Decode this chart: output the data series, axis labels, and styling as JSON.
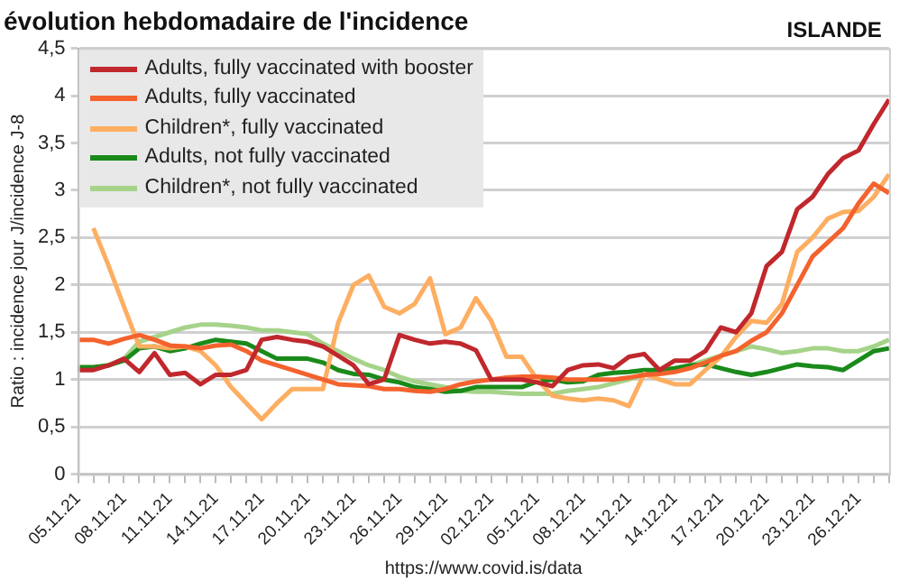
{
  "chart_data": {
    "type": "line",
    "title": "évolution hebdomadaire de l'incidence",
    "ylabel": "Ratio : incidence jour J/incidence J-8",
    "annotations": [
      "ISLANDE",
      "https://www.covid.is/data"
    ],
    "categories": [
      "05.11.21",
      null,
      null,
      "08.11.21",
      null,
      null,
      "11.11.21",
      null,
      null,
      "14.11.21",
      null,
      null,
      "17.11.21",
      null,
      null,
      "20.11.21",
      null,
      null,
      "23.11.21",
      null,
      null,
      "26.11.21",
      null,
      null,
      "29.11.21",
      null,
      null,
      "02.12.21",
      null,
      null,
      "05.12.21",
      null,
      null,
      "08.12.21",
      null,
      null,
      "11.12.21",
      null,
      null,
      "14.12.21",
      null,
      null,
      "17.12.21",
      null,
      null,
      "20.12.21",
      null,
      null,
      "23.12.21",
      null,
      null,
      "26.12.21",
      null,
      null
    ],
    "series": [
      {
        "name": "Adults, fully vaccinated with booster",
        "color": "#c0282d",
        "values": [
          1.1,
          1.1,
          1.15,
          1.22,
          1.08,
          1.28,
          1.05,
          1.07,
          0.95,
          1.05,
          1.05,
          1.1,
          1.42,
          1.45,
          1.42,
          1.4,
          1.35,
          1.25,
          1.15,
          0.95,
          1.0,
          1.47,
          1.42,
          1.38,
          1.4,
          1.38,
          1.31,
          1.0,
          1.0,
          1.0,
          0.97,
          0.93,
          1.1,
          1.15,
          1.16,
          1.12,
          1.24,
          1.27,
          1.1,
          1.2,
          1.2,
          1.3,
          1.55,
          1.5,
          1.7,
          2.2,
          2.35,
          2.8,
          2.93,
          3.17,
          3.34,
          3.42,
          3.7,
          3.96
        ]
      },
      {
        "name": "Adults, fully vaccinated",
        "color": "#f4622d",
        "values": [
          1.42,
          1.42,
          1.38,
          1.43,
          1.47,
          1.42,
          1.36,
          1.35,
          1.33,
          1.36,
          1.37,
          1.3,
          1.2,
          1.15,
          1.1,
          1.05,
          1.0,
          0.95,
          0.94,
          0.93,
          0.9,
          0.9,
          0.88,
          0.87,
          0.9,
          0.95,
          0.98,
          1.0,
          1.02,
          1.03,
          1.03,
          1.02,
          1.0,
          1.0,
          1.0,
          1.0,
          1.02,
          1.05,
          1.06,
          1.08,
          1.12,
          1.18,
          1.25,
          1.3,
          1.41,
          1.5,
          1.7,
          2.0,
          2.3,
          2.45,
          2.6,
          2.86,
          3.07,
          2.97
        ]
      },
      {
        "name": "Children*, fully vaccinated",
        "color": "#fdae61",
        "values": [
          null,
          2.6,
          2.2,
          1.77,
          1.35,
          1.35,
          1.33,
          1.35,
          1.3,
          1.15,
          0.92,
          0.75,
          0.58,
          0.75,
          0.9,
          0.9,
          0.9,
          1.6,
          2.0,
          2.1,
          1.77,
          1.7,
          1.8,
          2.07,
          1.48,
          1.55,
          1.86,
          1.62,
          1.24,
          1.24,
          1.0,
          0.83,
          0.8,
          0.78,
          0.8,
          0.78,
          0.72,
          1.06,
          1.0,
          0.95,
          0.95,
          1.1,
          1.24,
          1.45,
          1.62,
          1.6,
          1.8,
          2.35,
          2.5,
          2.7,
          2.77,
          2.78,
          2.93,
          3.17
        ]
      },
      {
        "name": "Adults, not fully vaccinated",
        "color": "#1a8a1a",
        "values": [
          1.13,
          1.13,
          1.15,
          1.2,
          1.33,
          1.35,
          1.3,
          1.33,
          1.38,
          1.42,
          1.4,
          1.38,
          1.3,
          1.22,
          1.22,
          1.22,
          1.18,
          1.1,
          1.06,
          1.05,
          1.0,
          0.97,
          0.92,
          0.9,
          0.87,
          0.88,
          0.92,
          0.92,
          0.92,
          0.92,
          0.98,
          1.0,
          0.97,
          0.98,
          1.05,
          1.07,
          1.08,
          1.1,
          1.1,
          1.12,
          1.15,
          1.16,
          1.12,
          1.08,
          1.05,
          1.08,
          1.12,
          1.16,
          1.14,
          1.13,
          1.1,
          1.2,
          1.3,
          1.33
        ]
      },
      {
        "name": "Children*, not fully vaccinated",
        "color": "#a6d38a",
        "values": [
          1.1,
          1.12,
          1.15,
          1.22,
          1.4,
          1.45,
          1.5,
          1.55,
          1.58,
          1.58,
          1.57,
          1.55,
          1.52,
          1.52,
          1.5,
          1.48,
          1.38,
          1.3,
          1.22,
          1.15,
          1.1,
          1.03,
          0.98,
          0.95,
          0.92,
          0.88,
          0.87,
          0.87,
          0.86,
          0.85,
          0.85,
          0.85,
          0.88,
          0.9,
          0.92,
          0.96,
          1.0,
          1.05,
          1.08,
          1.12,
          1.15,
          1.2,
          1.25,
          1.3,
          1.35,
          1.32,
          1.28,
          1.3,
          1.33,
          1.33,
          1.3,
          1.3,
          1.35,
          1.42
        ]
      }
    ],
    "ylim": [
      0,
      4.5
    ],
    "yticks": [
      0,
      {
        "value": 0.5,
        "label": "0,5"
      },
      1,
      {
        "value": 1.5,
        "label": "1,5"
      },
      2,
      {
        "value": 2.5,
        "label": "2,5"
      },
      3,
      {
        "value": 3.5,
        "label": "3,5"
      },
      4,
      {
        "value": 4.5,
        "label": "4,5"
      }
    ],
    "grid": "y",
    "legend": "top left",
    "marker": "none",
    "line_style": "solid"
  }
}
